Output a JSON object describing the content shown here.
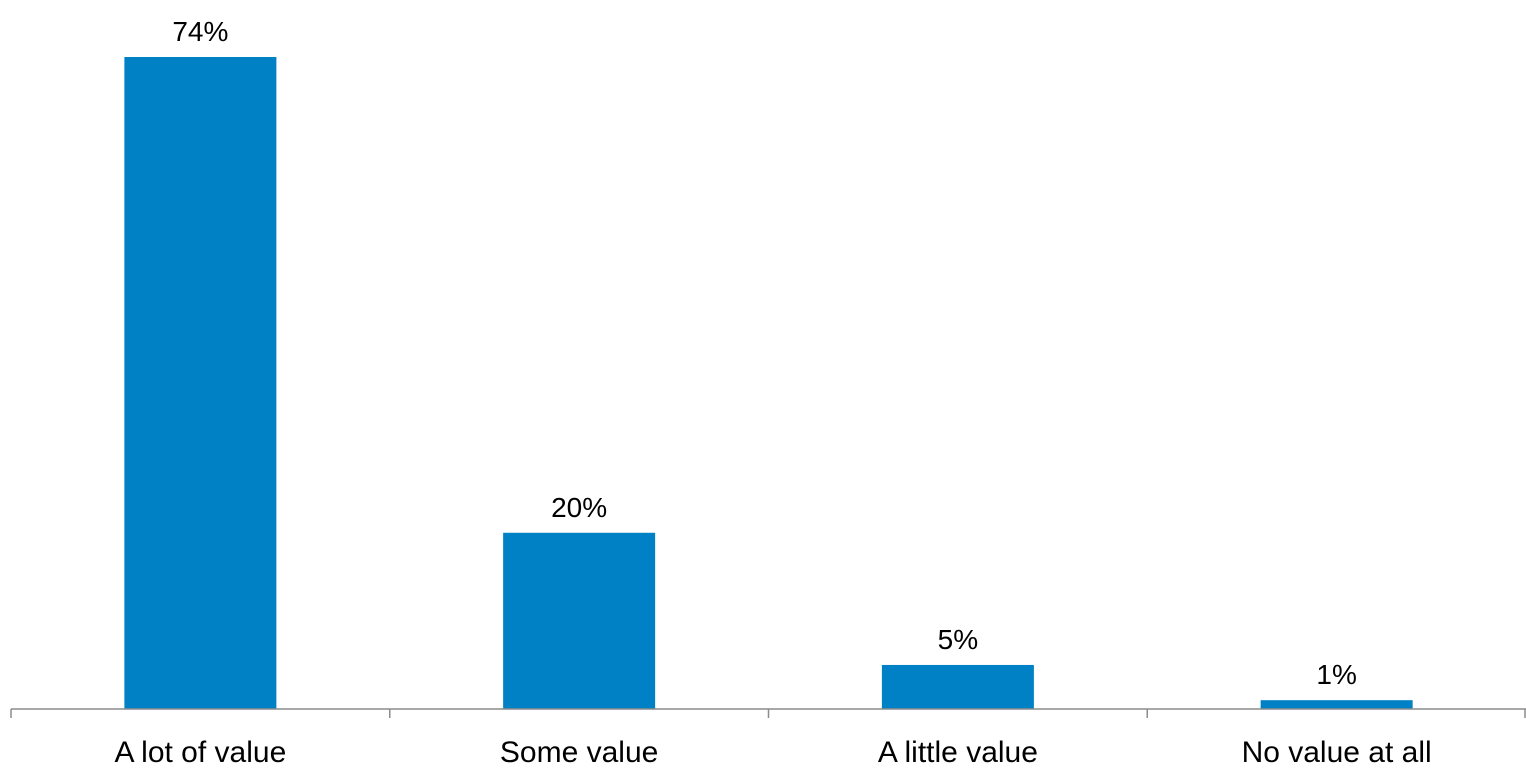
{
  "chart_data": {
    "type": "bar",
    "categories": [
      "A lot of value",
      "Some value",
      "A little value",
      "No value at all"
    ],
    "values": [
      74,
      20,
      5,
      1
    ],
    "value_labels": [
      "74%",
      "20%",
      "5%",
      "1%"
    ],
    "unit": "%",
    "title": "",
    "xlabel": "",
    "ylabel": "",
    "ylim": [
      0,
      74
    ],
    "grid": false,
    "legend": "none",
    "colors": {
      "bar": "#0081C6",
      "axis": "#8C8C8C",
      "text": "#000000"
    }
  }
}
